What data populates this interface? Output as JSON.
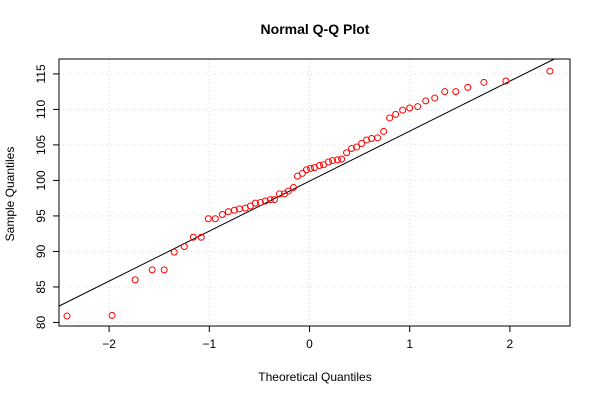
{
  "chart_data": {
    "type": "scatter",
    "title": "Normal Q-Q Plot",
    "xlabel": "Theoretical Quantiles",
    "ylabel": "Sample Quantiles",
    "xlim": [
      -2.5,
      2.6
    ],
    "ylim": [
      79.5,
      117.1
    ],
    "xticks": [
      -2,
      -1,
      0,
      1,
      2
    ],
    "xtick_labels": [
      "−2",
      "−1",
      "0",
      "1",
      "2"
    ],
    "yticks": [
      80,
      85,
      90,
      95,
      100,
      105,
      110,
      115
    ],
    "ytick_labels": [
      "80",
      "85",
      "90",
      "95",
      "100",
      "105",
      "110",
      "115"
    ],
    "grid": true,
    "point_color": "#ff0000",
    "line_color": "#000000",
    "reference_line": {
      "x": [
        -2.5,
        2.6
      ],
      "y": [
        82.3,
        118.2
      ]
    },
    "points": {
      "x": [
        -2.42,
        -1.97,
        -1.74,
        -1.57,
        -1.45,
        -1.35,
        -1.25,
        -1.16,
        -1.08,
        -1.01,
        -0.94,
        -0.87,
        -0.81,
        -0.75,
        -0.7,
        -0.64,
        -0.59,
        -0.54,
        -0.49,
        -0.44,
        -0.39,
        -0.35,
        -0.3,
        -0.25,
        -0.21,
        -0.16,
        -0.12,
        -0.07,
        -0.03,
        0.01,
        0.05,
        0.1,
        0.14,
        0.19,
        0.23,
        0.28,
        0.32,
        0.37,
        0.42,
        0.47,
        0.52,
        0.57,
        0.62,
        0.68,
        0.74,
        0.8,
        0.86,
        0.93,
        1.0,
        1.08,
        1.16,
        1.25,
        1.35,
        1.46,
        1.58,
        1.74,
        1.96,
        2.4
      ],
      "y": [
        80.9,
        81.0,
        86.0,
        87.4,
        87.4,
        89.9,
        90.7,
        92.0,
        92.0,
        94.6,
        94.6,
        95.2,
        95.6,
        95.8,
        96.0,
        96.1,
        96.4,
        96.8,
        96.9,
        97.1,
        97.3,
        97.3,
        98.1,
        98.1,
        98.5,
        99.0,
        100.6,
        101.0,
        101.5,
        101.7,
        101.8,
        102.1,
        102.2,
        102.6,
        102.8,
        102.9,
        103.0,
        103.9,
        104.5,
        104.7,
        105.2,
        105.7,
        105.9,
        106.0,
        106.9,
        108.8,
        109.3,
        109.9,
        110.2,
        110.4,
        111.2,
        111.6,
        112.5,
        112.5,
        113.1,
        113.8,
        114.0,
        115.4
      ]
    }
  }
}
